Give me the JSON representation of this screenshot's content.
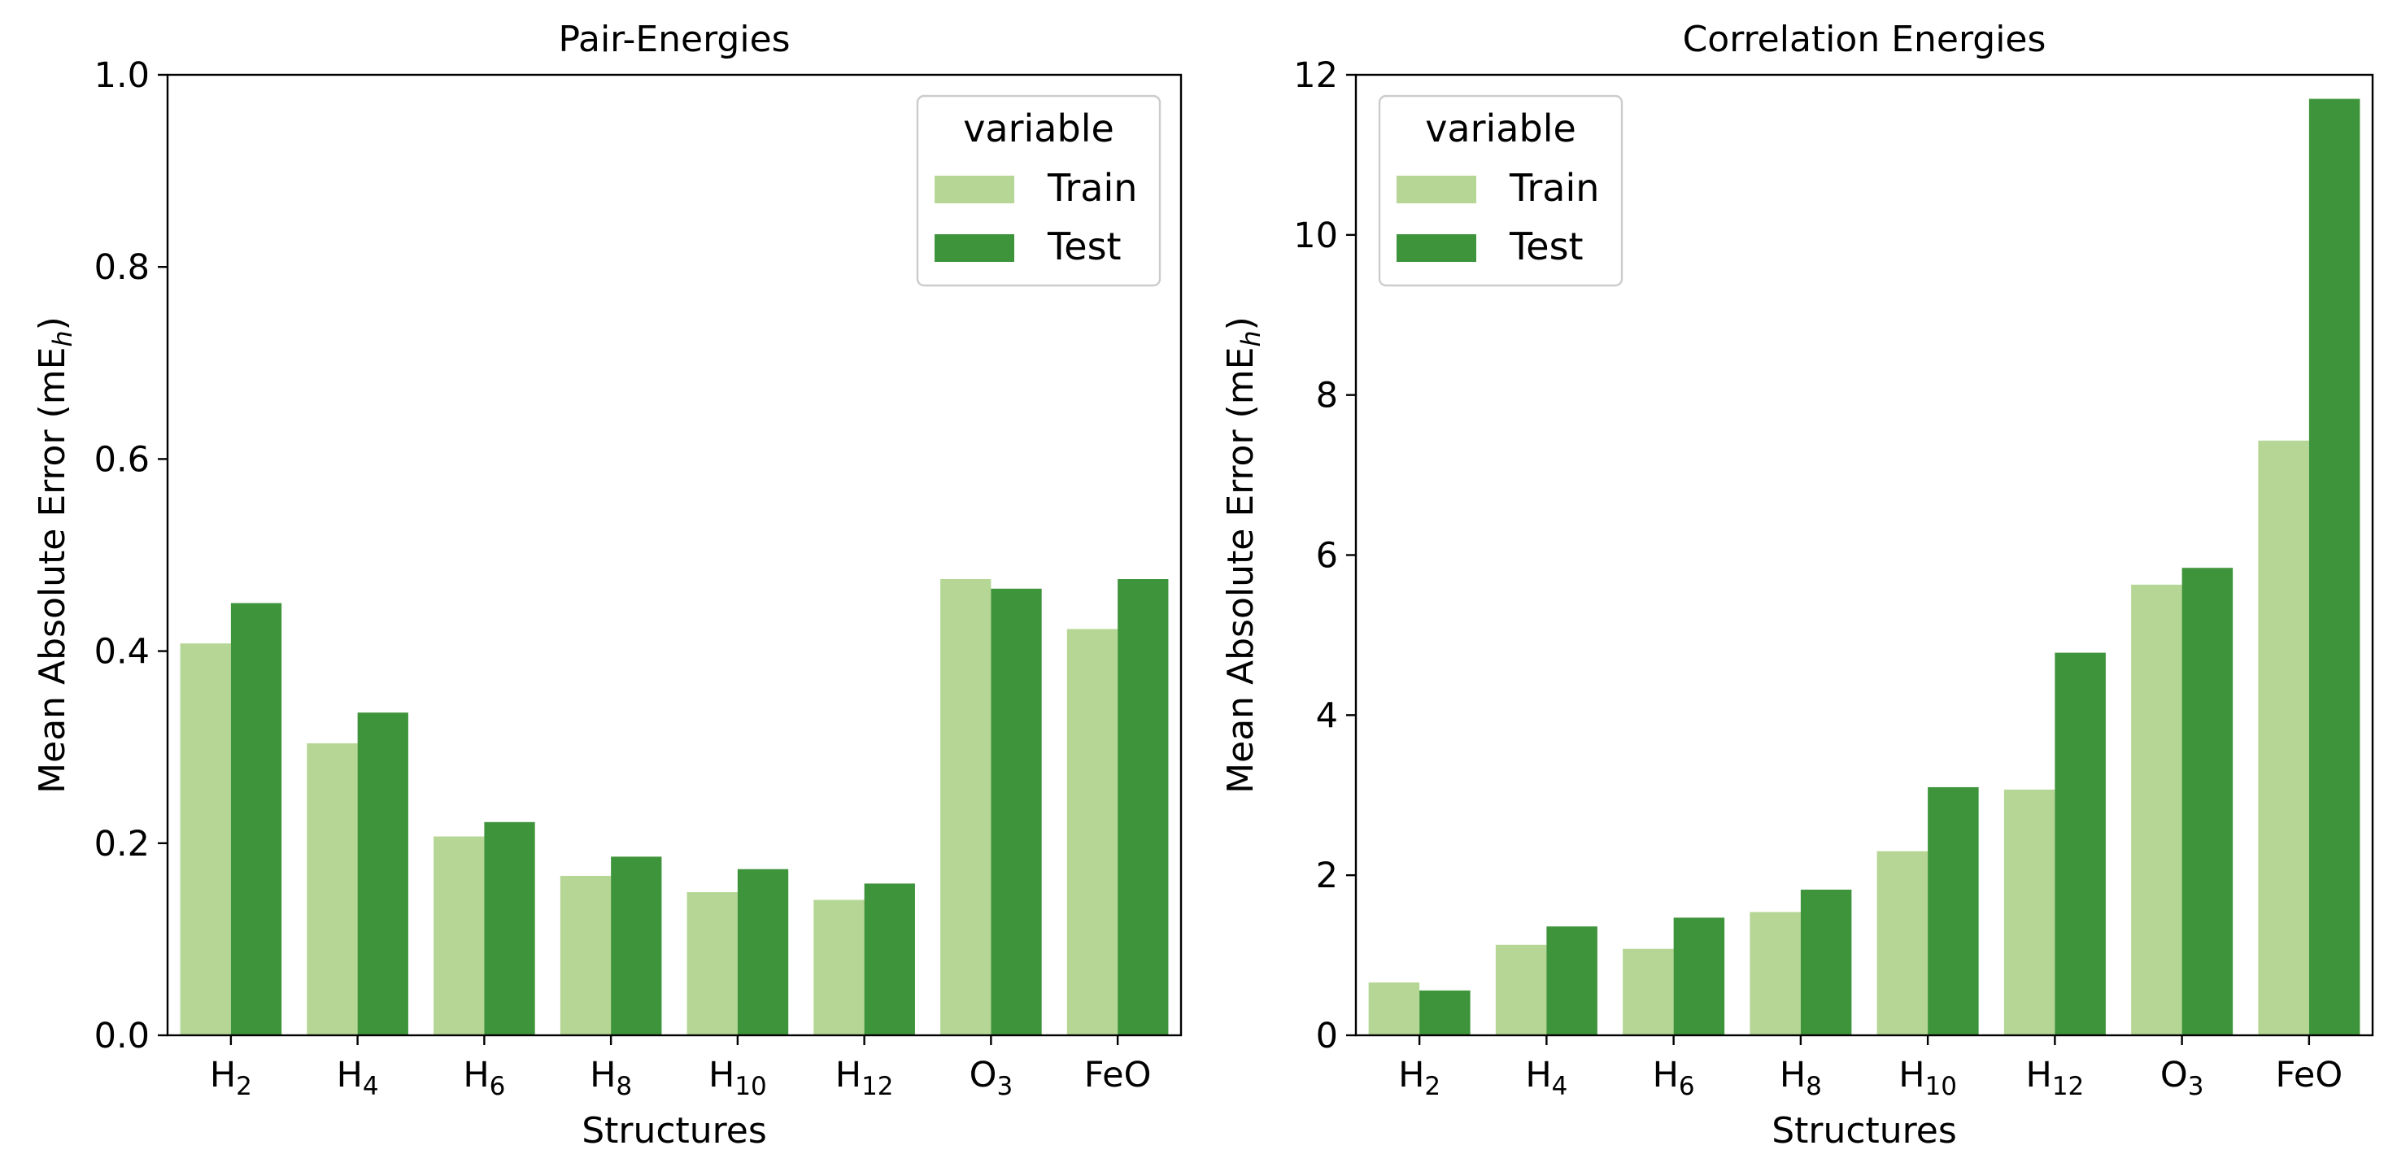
{
  "chart_data": [
    {
      "type": "bar",
      "title": "Pair-Energies",
      "xlabel": "Structures",
      "ylabel": "Mean Absolute Error (mEₕ)",
      "ylabel_parts": {
        "main": "Mean Absolute Error (mE",
        "sub": "h",
        "end": ")"
      },
      "categories": [
        {
          "base": "H",
          "sub": "2"
        },
        {
          "base": "H",
          "sub": "4"
        },
        {
          "base": "H",
          "sub": "6"
        },
        {
          "base": "H",
          "sub": "8"
        },
        {
          "base": "H",
          "sub": "10"
        },
        {
          "base": "H",
          "sub": "12"
        },
        {
          "base": "O",
          "sub": "3"
        },
        {
          "base": "FeO",
          "sub": ""
        }
      ],
      "series": [
        {
          "name": "Train",
          "color": "#b5d694",
          "values": [
            0.408,
            0.304,
            0.207,
            0.166,
            0.149,
            0.141,
            0.475,
            0.423
          ]
        },
        {
          "name": "Test",
          "color": "#3e943a",
          "values": [
            0.45,
            0.336,
            0.222,
            0.186,
            0.173,
            0.158,
            0.465,
            0.475
          ]
        }
      ],
      "ylim": [
        0,
        1.0
      ],
      "yticks": [
        0.0,
        0.2,
        0.4,
        0.6,
        0.8,
        1.0
      ],
      "ytick_labels": [
        "0.0",
        "0.2",
        "0.4",
        "0.6",
        "0.8",
        "1.0"
      ],
      "legend": {
        "title": "variable",
        "placement": "top-right"
      },
      "grid": false
    },
    {
      "type": "bar",
      "title": "Correlation Energies",
      "xlabel": "Structures",
      "ylabel": "Mean Absolute Error (mEₕ)",
      "ylabel_parts": {
        "main": "Mean Absolute Error (mE",
        "sub": "h",
        "end": ")"
      },
      "categories": [
        {
          "base": "H",
          "sub": "2"
        },
        {
          "base": "H",
          "sub": "4"
        },
        {
          "base": "H",
          "sub": "6"
        },
        {
          "base": "H",
          "sub": "8"
        },
        {
          "base": "H",
          "sub": "10"
        },
        {
          "base": "H",
          "sub": "12"
        },
        {
          "base": "O",
          "sub": "3"
        },
        {
          "base": "FeO",
          "sub": ""
        }
      ],
      "series": [
        {
          "name": "Train",
          "color": "#b5d694",
          "values": [
            0.66,
            1.13,
            1.08,
            1.54,
            2.3,
            3.07,
            5.63,
            7.43
          ]
        },
        {
          "name": "Test",
          "color": "#3e943a",
          "values": [
            0.56,
            1.36,
            1.47,
            1.82,
            3.1,
            4.78,
            5.84,
            11.7
          ]
        }
      ],
      "ylim": [
        0,
        12
      ],
      "yticks": [
        0,
        2,
        4,
        6,
        8,
        10,
        12
      ],
      "ytick_labels": [
        "0",
        "2",
        "4",
        "6",
        "8",
        "10",
        "12"
      ],
      "legend": {
        "title": "variable",
        "placement": "top-left"
      },
      "grid": false
    }
  ]
}
